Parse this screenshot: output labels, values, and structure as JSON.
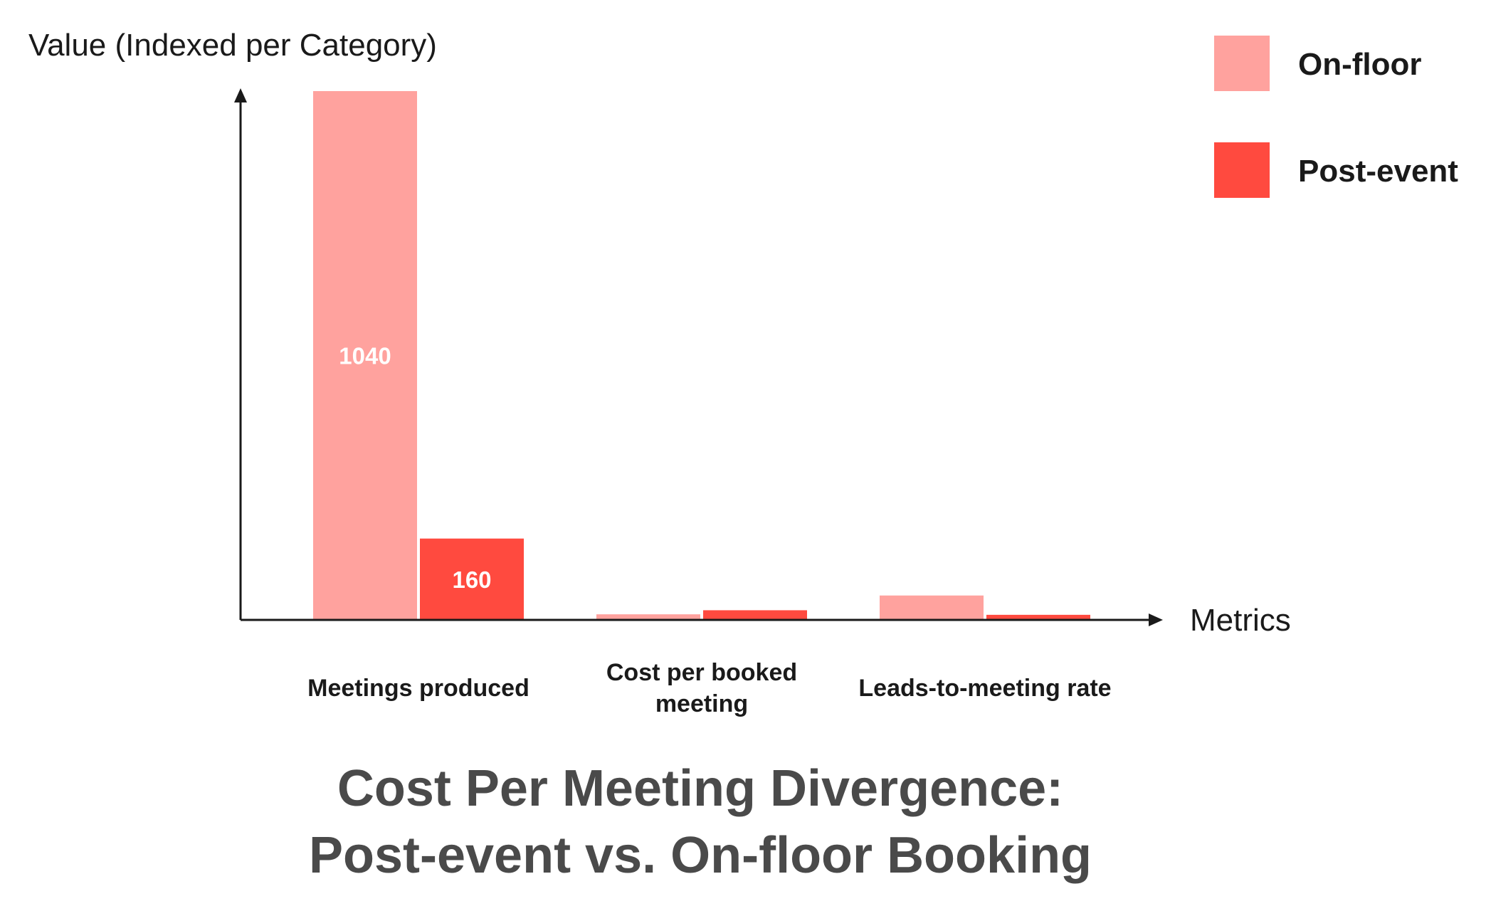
{
  "chart_data": {
    "type": "bar",
    "title": "Cost Per Meeting Divergence: Post-event vs. On-floor Booking",
    "title_lines": [
      "Cost Per Meeting Divergence:",
      "Post-event vs. On-floor Booking"
    ],
    "ylabel": "Value (Indexed per Category)",
    "xlabel": "Metrics",
    "categories": [
      [
        "Meetings produced"
      ],
      [
        "Cost per booked",
        "meeting"
      ],
      [
        "Leads-to-meeting rate"
      ]
    ],
    "series": [
      {
        "name": "On-floor",
        "color": "#FFA29E",
        "values": [
          1040,
          11,
          48
        ],
        "labels": [
          "1040",
          "",
          ""
        ]
      },
      {
        "name": "Post-event",
        "color": "#FF4A3F",
        "values": [
          160,
          19,
          10
        ],
        "labels": [
          "160",
          "",
          ""
        ]
      }
    ],
    "ylim": [
      0,
      1040
    ],
    "grid": false,
    "legend_position": "top-right",
    "axis_color": "#1a1a1a"
  }
}
